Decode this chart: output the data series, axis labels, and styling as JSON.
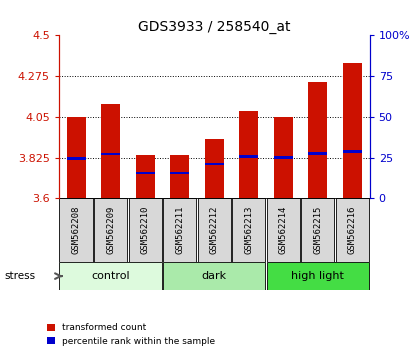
{
  "title": "GDS3933 / 258540_at",
  "samples": [
    "GSM562208",
    "GSM562209",
    "GSM562210",
    "GSM562211",
    "GSM562212",
    "GSM562213",
    "GSM562214",
    "GSM562215",
    "GSM562216"
  ],
  "bar_tops": [
    4.05,
    4.12,
    3.84,
    3.84,
    3.93,
    4.08,
    4.05,
    4.24,
    4.35
  ],
  "bar_base": 3.6,
  "blue_positions": [
    3.82,
    3.845,
    3.74,
    3.74,
    3.79,
    3.83,
    3.825,
    3.848,
    3.858
  ],
  "groups": [
    {
      "label": "control",
      "indices": [
        0,
        1,
        2
      ],
      "color": "#ddfadd"
    },
    {
      "label": "dark",
      "indices": [
        3,
        4,
        5
      ],
      "color": "#aaeaaa"
    },
    {
      "label": "high light",
      "indices": [
        6,
        7,
        8
      ],
      "color": "#44dd44"
    }
  ],
  "ylim": [
    3.6,
    4.5
  ],
  "yticks": [
    3.6,
    3.825,
    4.05,
    4.275,
    4.5
  ],
  "ytick_labels": [
    "3.6",
    "3.825",
    "4.05",
    "4.275",
    "4.5"
  ],
  "right_yticks": [
    0,
    25,
    50,
    75,
    100
  ],
  "right_ytick_labels": [
    "0",
    "25",
    "50",
    "75",
    "100%"
  ],
  "bar_color": "#cc1100",
  "blue_color": "#0000cc",
  "bar_width": 0.55,
  "stress_label": "stress",
  "grid_color": "black",
  "names_bg_color": "#d8d8d8",
  "label_color_red": "#cc1100",
  "label_color_blue": "#0000cc",
  "fig_width": 4.2,
  "fig_height": 3.54,
  "dpi": 100
}
